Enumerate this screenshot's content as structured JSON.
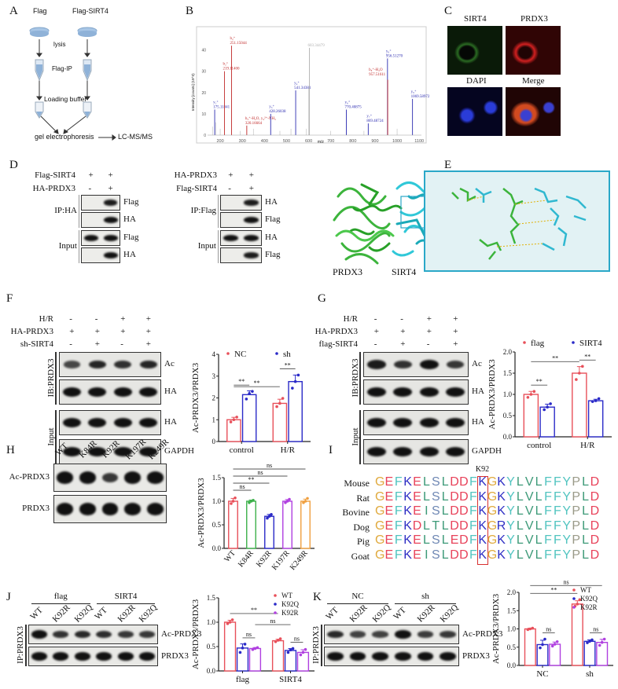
{
  "panels": {
    "A": "A",
    "B": "B",
    "C": "C",
    "D": "D",
    "E": "E",
    "F": "F",
    "G": "G",
    "H": "H",
    "I": "I",
    "J": "J",
    "K": "K"
  },
  "panel_a": {
    "col1": "Flag",
    "col2": "Flag-SIRT4",
    "step_lysis": "lysis",
    "step_ip": "Flag-IP",
    "step_loading": "Loading buffer",
    "step_gel": "gel electrophoresis",
    "step_ms": "LC-MS/MS"
  },
  "panel_b": {
    "ylabel": "Intensity [counts] (10^3)",
    "xlabel": "m/z",
    "yticks": [
      0,
      10,
      20,
      30,
      40
    ],
    "xticks": [
      200,
      300,
      400,
      500,
      600,
      700,
      800,
      900,
      1000,
      1100
    ],
    "xlim": [
      150,
      1110
    ],
    "ylim": [
      0,
      45
    ],
    "peaks": [
      {
        "mz": 175.11841,
        "intensity": 12,
        "ion": "y₁⁺",
        "label": "175.11841",
        "color": "#2a2ab0"
      },
      {
        "mz": 219.114,
        "intensity": 30,
        "ion": "b₂⁺",
        "label": "219.11400",
        "color": "#c02828"
      },
      {
        "mz": 251.15044,
        "intensity": 42,
        "ion": "b₂⁺",
        "label": "251.15044",
        "color": "#c02828"
      },
      {
        "mz": 320.16664,
        "intensity": 4.5,
        "ion": "b₃⁺-H₂O, y₄²⁺-NH₃",
        "label": "320.16664",
        "color": "#c02828"
      },
      {
        "mz": 428.26038,
        "intensity": 10,
        "ion": "y₃⁺",
        "label": "428.26038",
        "color": "#2a2ab0"
      },
      {
        "mz": 541.34381,
        "intensity": 21,
        "ion": "y₄⁺",
        "label": "541.34381",
        "color": "#2a2ab0"
      },
      {
        "mz": 603.34479,
        "intensity": 41,
        "ion": "",
        "label": "603.34479",
        "color": "#b0b0b0"
      },
      {
        "mz": 770.40875,
        "intensity": 12,
        "ion": "y₆⁺",
        "label": "770.40875",
        "color": "#2a2ab0"
      },
      {
        "mz": 869.48724,
        "intensity": 5.5,
        "ion": "y₇⁺",
        "label": "869.48724",
        "color": "#2a2ab0"
      },
      {
        "mz": 956.5127,
        "intensity": 36,
        "ion": "y₈⁺",
        "label": "956.51270",
        "color": "#2a2ab0"
      },
      {
        "mz": 957.51611,
        "intensity": 26,
        "ion": "b₈⁺-H₂O",
        "label": "957.51611",
        "color": "#c02828"
      },
      {
        "mz": 1069.58972,
        "intensity": 17,
        "ion": "y₉⁺",
        "label": "1069.58972",
        "color": "#2a2ab0"
      }
    ]
  },
  "panel_c": {
    "sirt4": "SIRT4",
    "prdx3": "PRDX3",
    "dapi": "DAPI",
    "merge": "Merge"
  },
  "panel_d": {
    "left": {
      "conditions": [
        {
          "label": "Flag-SIRT4",
          "marks": [
            "+",
            "+"
          ]
        },
        {
          "label": "HA-PRDX3",
          "marks": [
            "-",
            "+"
          ]
        }
      ],
      "groups": [
        {
          "label": "IP:HA"
        },
        {
          "label": "Input"
        }
      ],
      "rows": [
        {
          "label": "Flag",
          "bands": [
            0,
            0.9
          ]
        },
        {
          "label": "HA",
          "bands": [
            0,
            1
          ]
        },
        {
          "label": "Flag",
          "bands": [
            1,
            1
          ]
        },
        {
          "label": "HA",
          "bands": [
            0,
            1
          ]
        }
      ]
    },
    "right": {
      "conditions": [
        {
          "label": "HA-PRDX3",
          "marks": [
            "+",
            "+"
          ]
        },
        {
          "label": "Flag-SIRT4",
          "marks": [
            "-",
            "+"
          ]
        }
      ],
      "groups": [
        {
          "label": "IP:Flag"
        },
        {
          "label": "Input"
        }
      ],
      "rows": [
        {
          "label": "HA",
          "bands": [
            0,
            0.9
          ]
        },
        {
          "label": "Flag",
          "bands": [
            0,
            1
          ]
        },
        {
          "label": "HA",
          "bands": [
            1,
            1
          ]
        },
        {
          "label": "Flag",
          "bands": [
            0,
            0.9
          ]
        }
      ]
    }
  },
  "panel_e": {
    "prdx3": "PRDX3",
    "sirt4": "SIRT4"
  },
  "panel_f": {
    "conditions": [
      {
        "label": "H/R",
        "marks": [
          "-",
          "-",
          "+",
          "+"
        ]
      },
      {
        "label": "HA-PRDX3",
        "marks": [
          "+",
          "+",
          "+",
          "+"
        ]
      },
      {
        "label": "sh-SIRT4",
        "marks": [
          "-",
          "+",
          "-",
          "+"
        ]
      }
    ],
    "groups": [
      {
        "label": "IB:PRDX3"
      },
      {
        "label": "Input"
      }
    ],
    "rows": [
      {
        "label": "Ac",
        "bands": [
          0.5,
          0.8,
          0.7,
          0.8
        ]
      },
      {
        "label": "HA",
        "bands": [
          1,
          1,
          1,
          1
        ]
      },
      {
        "label": "HA",
        "bands": [
          1,
          1,
          1,
          1
        ]
      },
      {
        "label": "GAPDH",
        "bands": [
          1,
          1,
          1,
          1
        ]
      }
    ]
  },
  "panel_g": {
    "conditions": [
      {
        "label": "H/R",
        "marks": [
          "-",
          "-",
          "+",
          "+"
        ]
      },
      {
        "label": "HA-PRDX3",
        "marks": [
          "+",
          "+",
          "+",
          "+"
        ]
      },
      {
        "label": "flag-SIRT4",
        "marks": [
          "-",
          "+",
          "-",
          "+"
        ]
      }
    ],
    "groups": [
      {
        "label": "IB:PRDX3"
      },
      {
        "label": "Input"
      }
    ],
    "rows": [
      {
        "label": "Ac",
        "bands": [
          0.9,
          0.7,
          1,
          0.65
        ]
      },
      {
        "label": "HA",
        "bands": [
          1,
          1,
          1,
          1
        ]
      },
      {
        "label": "HA",
        "bands": [
          1,
          1,
          1,
          1
        ]
      },
      {
        "label": "GAPDH",
        "bands": [
          1,
          1,
          1,
          1
        ]
      }
    ]
  },
  "panel_h": {
    "lanes": [
      "WT",
      "K84R",
      "K92R",
      "K197R",
      "K249R"
    ],
    "rows": [
      {
        "label": "Ac-PRDX3",
        "bands": [
          1,
          1,
          0.6,
          1,
          1
        ]
      },
      {
        "label": "PRDX3",
        "bands": [
          1,
          1,
          1,
          1,
          1
        ]
      }
    ]
  },
  "panel_i": {
    "site_label": "K92",
    "highlight_index": 11,
    "species": [
      {
        "name": "Mouse",
        "seq": "GEFKELSLDDFKGKYLVLFFYPLD"
      },
      {
        "name": "Rat",
        "seq": "GEFKELSLDDFKGKYLVLFFYPLD"
      },
      {
        "name": "Bovine",
        "seq": "GEFKEISLDDFKGKYLVLFFYPLD"
      },
      {
        "name": "Dog",
        "seq": "GEFKDLTLDDFKGRYLVLFFYPLD"
      },
      {
        "name": "Pig",
        "seq": "GEFKELSLEDFKGKYLVLFFYPLD"
      },
      {
        "name": "Goat",
        "seq": "GEFKEISLDDFKGKYLVLFFYPLD"
      }
    ],
    "aa_colors": {
      "G": "#e0aa3e",
      "E": "#e8425a",
      "D": "#e8425a",
      "F": "#52c4c0",
      "K": "#2f2fc4",
      "R": "#2f2fc4",
      "L": "#3d9a78",
      "I": "#3d9a78",
      "V": "#3d9a78",
      "T": "#3d9a78",
      "S": "#6f88b4",
      "Y": "#52c4c0",
      "P": "#9a9a88"
    },
    "box_color": "#d83030"
  },
  "panel_j": {
    "groups": [
      {
        "label": "flag"
      },
      {
        "label": "SIRT4"
      }
    ],
    "lanes": [
      "WT",
      "K92R",
      "K92Q",
      "WT",
      "K92R",
      "K92Q"
    ],
    "ip_label": "IP:PRDX3",
    "rows": [
      {
        "label": "Ac-PRDX3",
        "bands": [
          1,
          0.65,
          0.75,
          0.7,
          0.6,
          0.6
        ]
      },
      {
        "label": "PRDX3",
        "bands": [
          1,
          1,
          1,
          1,
          1,
          1
        ]
      }
    ]
  },
  "panel_k": {
    "groups": [
      {
        "label": "NC"
      },
      {
        "label": "sh"
      }
    ],
    "lanes": [
      "WT",
      "K92R",
      "K92Q",
      "WT",
      "K92R",
      "K92Q"
    ],
    "ip_label": "IP:PRDX3",
    "rows": [
      {
        "label": "Ac-PRDX3",
        "bands": [
          0.75,
          0.5,
          0.5,
          1,
          0.55,
          0.6
        ]
      },
      {
        "label": "PRDX3",
        "bands": [
          1,
          1,
          1,
          1,
          1,
          1
        ]
      }
    ]
  },
  "chart_data": [
    {
      "id": "F",
      "type": "bar",
      "categories": [
        "control",
        "H/R"
      ],
      "ylabel": "Ac-PRDX3/PRDX3",
      "ylim": [
        0,
        4
      ],
      "yticks": [
        "0",
        "1",
        "2",
        "3",
        "4"
      ],
      "legend": "top",
      "series": [
        {
          "name": "NC",
          "color": "#e8505a",
          "values": [
            1.0,
            1.75
          ],
          "points": [
            [
              0.9,
              1.0,
              1.12
            ],
            [
              1.6,
              1.75,
              1.98
            ]
          ]
        },
        {
          "name": "sh",
          "color": "#2a2ac8",
          "values": [
            2.15,
            2.75
          ],
          "points": [
            [
              1.95,
              2.2,
              2.3
            ],
            [
              2.45,
              2.75,
              3.05
            ]
          ]
        }
      ],
      "significance": [
        {
          "a": [
            0,
            0
          ],
          "b": [
            0,
            1
          ],
          "label": "**"
        },
        {
          "a": [
            1,
            0
          ],
          "b": [
            1,
            1
          ],
          "label": "**"
        },
        {
          "a": [
            0,
            0
          ],
          "b": [
            1,
            0
          ],
          "label": "**"
        }
      ]
    },
    {
      "id": "G",
      "type": "bar",
      "categories": [
        "control",
        "H/R"
      ],
      "ylabel": "Ac-PRDX3/PRDX3",
      "ylim": [
        0,
        2
      ],
      "yticks": [
        "0.0",
        "0.5",
        "1.0",
        "1.5",
        "2.0"
      ],
      "legend": "top",
      "series": [
        {
          "name": "flag",
          "color": "#e8505a",
          "values": [
            1.0,
            1.5
          ],
          "points": [
            [
              0.93,
              1.0,
              1.07
            ],
            [
              1.35,
              1.5,
              1.66
            ]
          ]
        },
        {
          "name": "SIRT4",
          "color": "#2a2ac8",
          "values": [
            0.7,
            0.85
          ],
          "points": [
            [
              0.64,
              0.7,
              0.78
            ],
            [
              0.83,
              0.85,
              0.9
            ]
          ]
        }
      ],
      "significance": [
        {
          "a": [
            0,
            0
          ],
          "b": [
            0,
            1
          ],
          "label": "**"
        },
        {
          "a": [
            1,
            0
          ],
          "b": [
            1,
            1
          ],
          "label": "**"
        },
        {
          "a": [
            0,
            0
          ],
          "b": [
            1,
            0
          ],
          "label": "**"
        }
      ]
    },
    {
      "id": "H",
      "type": "bar",
      "categories": [
        "WT",
        "K84R",
        "K92R",
        "K197R",
        "K249R"
      ],
      "ylabel": "Ac-PRDX3/PRDX3",
      "ylim": [
        0,
        1.5
      ],
      "yticks": [
        "0.0",
        "0.5",
        "1.0",
        "1.5"
      ],
      "legend": "none",
      "series": [
        {
          "colors": [
            "#e8505a",
            "#3cb04a",
            "#2a2ac8",
            "#b040e0",
            "#f0a040"
          ],
          "values": [
            1.0,
            1.0,
            0.68,
            1.0,
            1.0
          ],
          "points": [
            [
              0.95,
              1.0,
              1.07
            ],
            [
              0.97,
              1.0,
              1.02
            ],
            [
              0.64,
              0.68,
              0.72
            ],
            [
              0.97,
              1.0,
              1.04
            ],
            [
              0.97,
              1.0,
              1.06
            ]
          ]
        }
      ],
      "significance": [
        {
          "a": [
            0,
            0
          ],
          "b": [
            1,
            0
          ],
          "label": "ns"
        },
        {
          "a": [
            0,
            0
          ],
          "b": [
            2,
            0
          ],
          "label": "**"
        },
        {
          "a": [
            0,
            0
          ],
          "b": [
            3,
            0
          ],
          "label": "ns"
        },
        {
          "a": [
            0,
            0
          ],
          "b": [
            4,
            0
          ],
          "label": "ns"
        }
      ]
    },
    {
      "id": "J",
      "type": "bar",
      "categories": [
        "flag",
        "SIRT4"
      ],
      "ylabel": "Ac-PRDX3/PRDX3",
      "ylim": [
        0,
        1.5
      ],
      "yticks": [
        "0.0",
        "0.5",
        "1.0",
        "1.5"
      ],
      "legend": "top-right",
      "series": [
        {
          "name": "WT",
          "color": "#e8505a",
          "values": [
            1.0,
            0.62
          ],
          "points": [
            [
              0.97,
              1.0,
              1.05
            ],
            [
              0.6,
              0.63,
              0.66
            ]
          ]
        },
        {
          "name": "K92Q",
          "color": "#2a2ac8",
          "values": [
            0.47,
            0.42
          ],
          "points": [
            [
              0.38,
              0.47,
              0.55
            ],
            [
              0.38,
              0.43,
              0.46
            ]
          ]
        },
        {
          "name": "K92R",
          "color": "#b040e0",
          "values": [
            0.46,
            0.38
          ],
          "points": [
            [
              0.44,
              0.46,
              0.48
            ],
            [
              0.33,
              0.38,
              0.44
            ]
          ]
        }
      ],
      "significance": [
        {
          "a": [
            0,
            1
          ],
          "b": [
            0,
            2
          ],
          "label": "ns"
        },
        {
          "a": [
            1,
            1
          ],
          "b": [
            1,
            2
          ],
          "label": "ns"
        },
        {
          "a": [
            0,
            0
          ],
          "b": [
            1,
            0
          ],
          "label": "**"
        },
        {
          "a": [
            0,
            2
          ],
          "b": [
            1,
            1
          ],
          "label": "ns"
        }
      ]
    },
    {
      "id": "K",
      "type": "bar",
      "categories": [
        "NC",
        "sh"
      ],
      "ylabel": "Ac-PRDX3/PRDX3",
      "ylim": [
        0,
        2
      ],
      "yticks": [
        "0.0",
        "0.5",
        "1.0",
        "1.5",
        "2.0"
      ],
      "legend": "top-right",
      "series": [
        {
          "name": "WT",
          "color": "#e8505a",
          "values": [
            1.0,
            1.68
          ],
          "points": [
            [
              0.98,
              1.0,
              1.02
            ],
            [
              1.62,
              1.68,
              1.8
            ]
          ]
        },
        {
          "name": "K92Q",
          "color": "#2a2ac8",
          "values": [
            0.57,
            0.66
          ],
          "points": [
            [
              0.48,
              0.57,
              0.72
            ],
            [
              0.62,
              0.66,
              0.7
            ]
          ]
        },
        {
          "name": "K92R",
          "color": "#b040e0",
          "values": [
            0.58,
            0.63
          ],
          "points": [
            [
              0.53,
              0.58,
              0.65
            ],
            [
              0.55,
              0.63,
              0.72
            ]
          ]
        }
      ],
      "significance": [
        {
          "a": [
            0,
            1
          ],
          "b": [
            0,
            2
          ],
          "label": "ns"
        },
        {
          "a": [
            1,
            1
          ],
          "b": [
            1,
            2
          ],
          "label": "ns"
        },
        {
          "a": [
            0,
            0
          ],
          "b": [
            1,
            0
          ],
          "label": "**"
        },
        {
          "a": [
            0,
            0
          ],
          "b": [
            1,
            2
          ],
          "label": "ns"
        }
      ]
    }
  ]
}
